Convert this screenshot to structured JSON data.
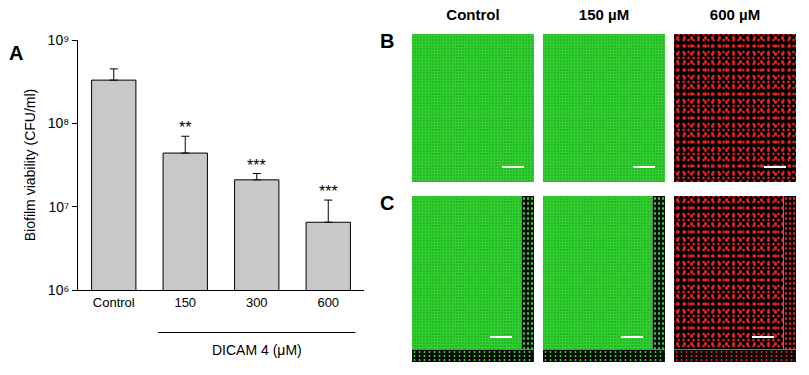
{
  "chart_data": {
    "type": "bar",
    "panel_label": "A",
    "categories": [
      "Control",
      "150",
      "300",
      "600"
    ],
    "values": [
      330000000,
      44000000,
      21000000,
      6500000
    ],
    "errors": [
      120000000,
      26000000,
      4000000,
      5500000
    ],
    "significance": [
      null,
      "**",
      "***",
      "***"
    ],
    "color": "#c8c8c8",
    "y_label": "Biofilm viability (CFU/ml)",
    "x_label": "DICAM 4 (μM)",
    "log": "y",
    "ylim": [
      1000000,
      1000000000
    ],
    "yticks": [
      {
        "value": 1000000,
        "label": "10⁶"
      },
      {
        "value": 10000000,
        "label": "10⁷"
      },
      {
        "value": 100000000,
        "label": "10⁸"
      },
      {
        "value": 1000000000,
        "label": "10⁹"
      }
    ],
    "grid": false
  },
  "images": {
    "columns": [
      "Control",
      "150 µM",
      "600 µM"
    ],
    "colors": [
      "#2fd12f",
      "#2fd12f",
      "#e02020"
    ],
    "rows": [
      "B",
      "C"
    ]
  }
}
